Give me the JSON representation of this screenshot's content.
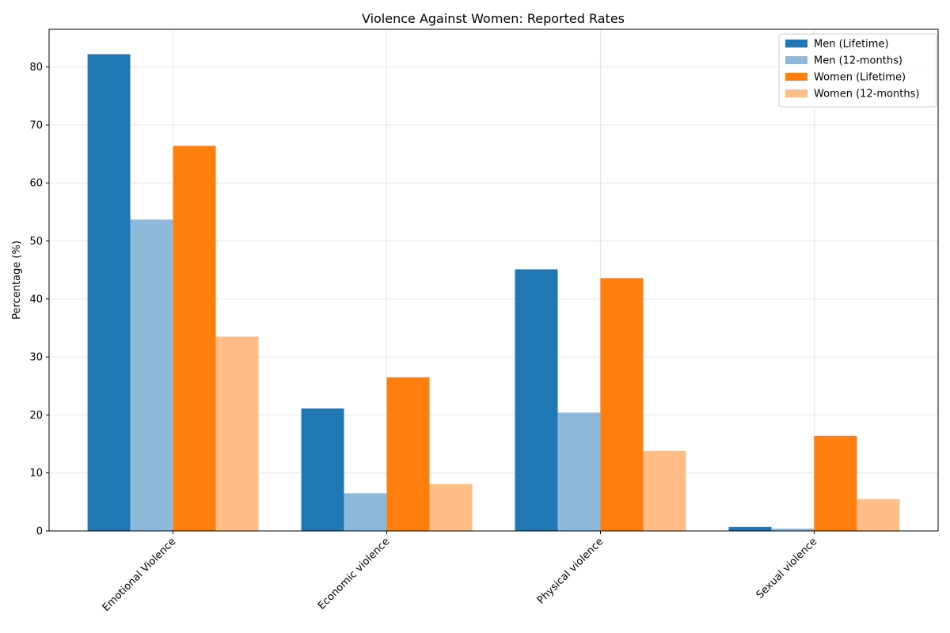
{
  "chart_data": {
    "type": "bar",
    "title": "Violence Against Women: Reported Rates",
    "xlabel": "",
    "ylabel": "Percentage (%)",
    "ylim": [
      0,
      86.5
    ],
    "yticks": [
      0,
      10,
      20,
      30,
      40,
      50,
      60,
      70,
      80
    ],
    "grid": true,
    "legend_position": "top-right",
    "categories": [
      "Emotional Violence",
      "Economic violence",
      "Physical violence",
      "Sexual violence"
    ],
    "series": [
      {
        "name": "Men (Lifetime)",
        "color": "#1f77b4",
        "values": [
          82.2,
          21.1,
          45.1,
          0.7
        ]
      },
      {
        "name": "Men (12-months)",
        "color": "#8fb9da",
        "values": [
          53.7,
          6.5,
          20.4,
          0.4
        ]
      },
      {
        "name": "Women (Lifetime)",
        "color": "#ff7f0e",
        "values": [
          66.4,
          26.5,
          43.6,
          16.4
        ]
      },
      {
        "name": "Women (12-months)",
        "color": "#ffbe87",
        "values": [
          33.5,
          8.1,
          13.8,
          5.5
        ]
      }
    ]
  }
}
